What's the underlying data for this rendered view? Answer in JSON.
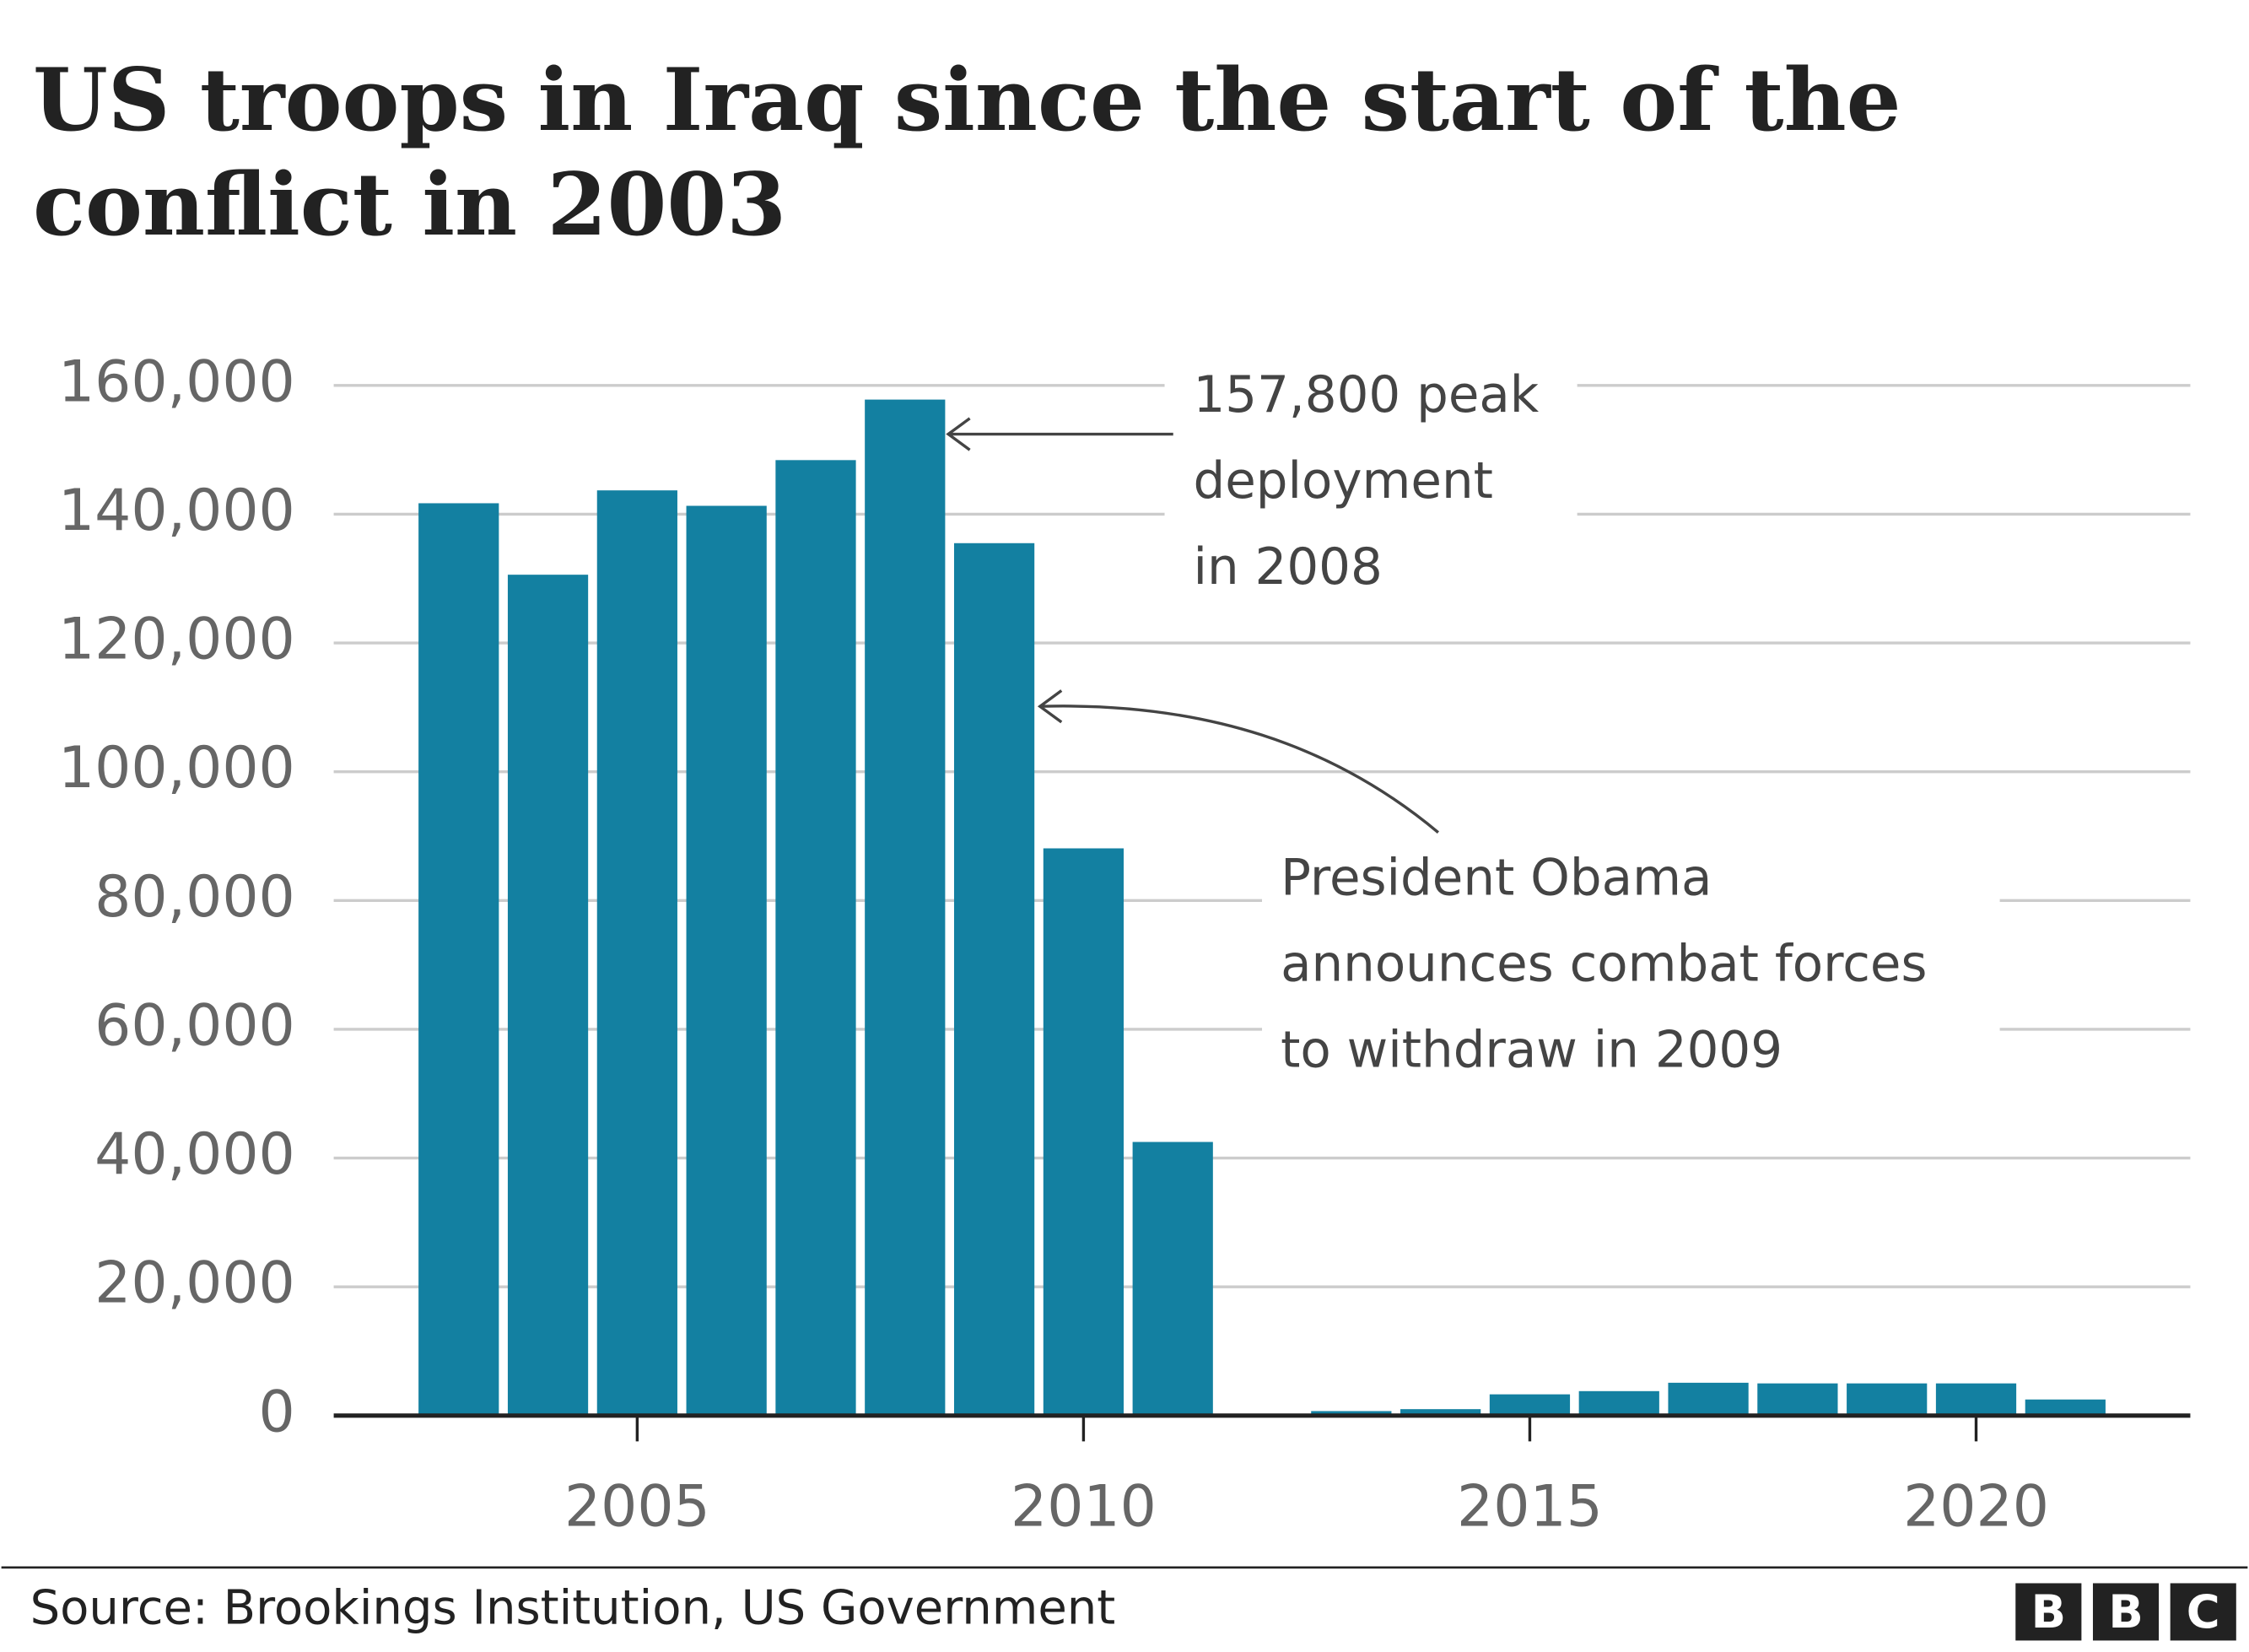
{
  "chart_data": {
    "type": "bar",
    "title": [
      "US troops in Iraq since the start of the",
      "conflict in 2003"
    ],
    "x": [
      2003,
      2004,
      2005,
      2006,
      2007,
      2008,
      2009,
      2010,
      2011,
      2013,
      2014,
      2015,
      2016,
      2017,
      2018,
      2019,
      2020,
      2021
    ],
    "values": [
      141700,
      130600,
      143700,
      141300,
      148400,
      157800,
      135500,
      88100,
      42500,
      700,
      1000,
      3300,
      3800,
      5100,
      5000,
      5000,
      5000,
      2500
    ],
    "color": "#1380a1",
    "xlim": [
      2001.6,
      2022.4
    ],
    "xticks": [
      2005,
      2010,
      2015,
      2020
    ],
    "ylim": [
      0,
      160000
    ],
    "yticks": [
      0,
      {
        "value": 20000,
        "label": "20,000"
      },
      {
        "value": 40000,
        "label": "40,000"
      },
      {
        "value": 60000,
        "label": "60,000"
      },
      {
        "value": 80000,
        "label": "80,000"
      },
      {
        "value": 100000,
        "label": "100,000"
      },
      {
        "value": 120000,
        "label": "120,000"
      },
      {
        "value": 140000,
        "label": "140,000"
      },
      {
        "value": 160000,
        "label": "160,000"
      }
    ],
    "grid": true,
    "annotations": [
      [
        "157,800 peak",
        "deployment",
        "in 2008"
      ],
      [
        "President Obama",
        "announces combat forces",
        "to withdraw in 2009"
      ]
    ],
    "source": "Source: Brookings Institution, US Government",
    "logo": [
      "B",
      "B",
      "C"
    ]
  }
}
